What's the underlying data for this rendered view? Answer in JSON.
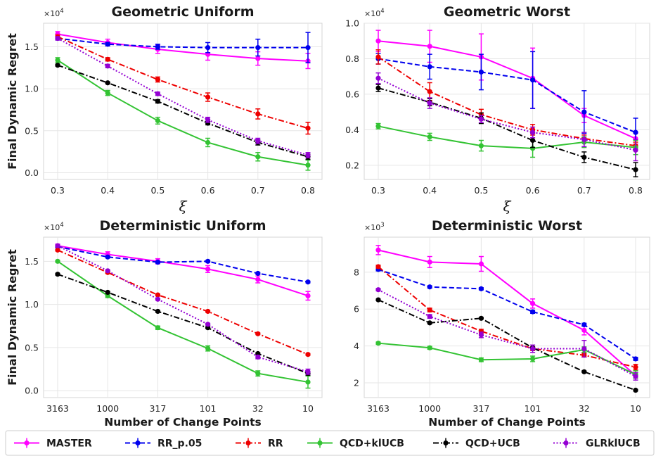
{
  "chart_data": [
    {
      "type": "line",
      "title": "Geometric Uniform",
      "xlabel": "ξ",
      "ylabel": "Final Dynamic Regret",
      "y_multiplier": "×10",
      "y_multiplier_exp": "4",
      "categories": [
        "0.3",
        "0.4",
        "0.5",
        "0.6",
        "0.7",
        "0.8"
      ],
      "ylim": [
        -0.08,
        1.78
      ],
      "yticks": [
        0.0,
        0.5,
        1.0,
        1.5
      ],
      "yticklabels": [
        "0.0",
        "0.5",
        "1.0",
        "1.5"
      ],
      "series": [
        {
          "name": "MASTER",
          "values": [
            1.65,
            1.55,
            1.47,
            1.41,
            1.36,
            1.33
          ],
          "errors": [
            0.03,
            0.04,
            0.05,
            0.07,
            0.08,
            0.09
          ]
        },
        {
          "name": "RR_p.05",
          "values": [
            1.6,
            1.53,
            1.5,
            1.49,
            1.49,
            1.49
          ],
          "errors": [
            0.02,
            0.02,
            0.03,
            0.06,
            0.1,
            0.18
          ]
        },
        {
          "name": "RR",
          "values": [
            1.62,
            1.35,
            1.11,
            0.9,
            0.7,
            0.53
          ],
          "errors": [
            0.02,
            0.02,
            0.03,
            0.05,
            0.06,
            0.07
          ]
        },
        {
          "name": "QCD+klUCB",
          "values": [
            1.34,
            0.95,
            0.62,
            0.36,
            0.19,
            0.09
          ],
          "errors": [
            0.03,
            0.03,
            0.04,
            0.05,
            0.05,
            0.06
          ]
        },
        {
          "name": "QCD+UCB",
          "values": [
            1.28,
            1.07,
            0.85,
            0.59,
            0.36,
            0.19
          ],
          "errors": [
            0.01,
            0.01,
            0.02,
            0.02,
            0.03,
            0.03
          ]
        },
        {
          "name": "GLRklUCB",
          "values": [
            1.6,
            1.27,
            0.94,
            0.63,
            0.38,
            0.21
          ],
          "errors": [
            0.02,
            0.02,
            0.02,
            0.03,
            0.03,
            0.03
          ]
        }
      ],
      "grid": true
    },
    {
      "type": "line",
      "title": "Geometric Worst",
      "xlabel": "ξ",
      "ylabel": "",
      "y_multiplier": "×10",
      "y_multiplier_exp": "4",
      "categories": [
        "0.3",
        "0.4",
        "0.5",
        "0.6",
        "0.7",
        "0.8"
      ],
      "ylim": [
        0.12,
        1.0
      ],
      "yticks": [
        0.2,
        0.4,
        0.6,
        0.8,
        1.0
      ],
      "yticklabels": [
        "0.2",
        "0.4",
        "0.6",
        "0.8",
        "1.0"
      ],
      "series": [
        {
          "name": "MASTER",
          "values": [
            0.9,
            0.87,
            0.81,
            0.69,
            0.48,
            0.35
          ],
          "errors": [
            0.06,
            0.09,
            0.13,
            0.17,
            0.04,
            0.03
          ]
        },
        {
          "name": "RR_p.05",
          "values": [
            0.8,
            0.755,
            0.725,
            0.68,
            0.5,
            0.385
          ],
          "errors": [
            0.03,
            0.07,
            0.1,
            0.16,
            0.12,
            0.08
          ]
        },
        {
          "name": "RR",
          "values": [
            0.81,
            0.615,
            0.485,
            0.4,
            0.35,
            0.31
          ],
          "errors": [
            0.04,
            0.05,
            0.03,
            0.03,
            0.02,
            0.02
          ]
        },
        {
          "name": "QCD+klUCB",
          "values": [
            0.42,
            0.36,
            0.31,
            0.295,
            0.33,
            0.3
          ],
          "errors": [
            0.015,
            0.02,
            0.03,
            0.05,
            0.03,
            0.04
          ]
        },
        {
          "name": "QCD+UCB",
          "values": [
            0.635,
            0.555,
            0.465,
            0.34,
            0.245,
            0.175
          ],
          "errors": [
            0.02,
            0.02,
            0.03,
            0.04,
            0.03,
            0.04
          ]
        },
        {
          "name": "GLRklUCB",
          "values": [
            0.69,
            0.55,
            0.46,
            0.385,
            0.345,
            0.285
          ],
          "errors": [
            0.03,
            0.03,
            0.02,
            0.03,
            0.04,
            0.06
          ]
        }
      ],
      "grid": true
    },
    {
      "type": "line",
      "title": "Deterministic Uniform",
      "xlabel": "Number of Change Points",
      "ylabel": "Final Dynamic Regret",
      "y_multiplier": "×10",
      "y_multiplier_exp": "4",
      "categories": [
        "3163",
        "1000",
        "317",
        "101",
        "32",
        "10"
      ],
      "ylim": [
        -0.08,
        1.78
      ],
      "yticks": [
        0.0,
        0.5,
        1.0,
        1.5
      ],
      "yticklabels": [
        "0.0",
        "0.5",
        "1.0",
        "1.5"
      ],
      "series": [
        {
          "name": "MASTER",
          "values": [
            1.68,
            1.58,
            1.5,
            1.41,
            1.29,
            1.1
          ],
          "errors": [
            0.02,
            0.03,
            0.03,
            0.04,
            0.04,
            0.05
          ]
        },
        {
          "name": "RR_p.05",
          "values": [
            1.67,
            1.55,
            1.49,
            1.5,
            1.36,
            1.26
          ],
          "errors": [
            0.01,
            0.01,
            0.01,
            0.01,
            0.01,
            0.01
          ]
        },
        {
          "name": "RR",
          "values": [
            1.63,
            1.37,
            1.11,
            0.92,
            0.66,
            0.42
          ],
          "errors": [
            0.01,
            0.01,
            0.01,
            0.01,
            0.01,
            0.01
          ]
        },
        {
          "name": "QCD+klUCB",
          "values": [
            1.5,
            1.1,
            0.73,
            0.49,
            0.2,
            0.1
          ],
          "errors": [
            0.01,
            0.02,
            0.02,
            0.03,
            0.03,
            0.07
          ]
        },
        {
          "name": "QCD+UCB",
          "values": [
            1.35,
            1.14,
            0.92,
            0.73,
            0.43,
            0.2
          ],
          "errors": [
            0.01,
            0.01,
            0.01,
            0.01,
            0.01,
            0.02
          ]
        },
        {
          "name": "GLRklUCB",
          "values": [
            1.68,
            1.39,
            1.06,
            0.77,
            0.39,
            0.22
          ],
          "errors": [
            0.01,
            0.01,
            0.01,
            0.01,
            0.02,
            0.03
          ]
        }
      ],
      "grid": true
    },
    {
      "type": "line",
      "title": "Deterministic Worst",
      "xlabel": "Number of Change Points",
      "ylabel": "",
      "y_multiplier": "×10",
      "y_multiplier_exp": "3",
      "categories": [
        "3163",
        "1000",
        "317",
        "101",
        "32",
        "10"
      ],
      "ylim": [
        1.2,
        9.9
      ],
      "yticks": [
        2,
        4,
        6,
        8
      ],
      "yticklabels": [
        "2",
        "4",
        "6",
        "8"
      ],
      "series": [
        {
          "name": "MASTER",
          "values": [
            9.2,
            8.55,
            8.45,
            6.3,
            4.85,
            2.4
          ],
          "errors": [
            0.25,
            0.3,
            0.4,
            0.25,
            0.25,
            0.15
          ]
        },
        {
          "name": "RR_p.05",
          "values": [
            8.15,
            7.2,
            7.1,
            5.85,
            5.15,
            3.3
          ],
          "errors": [
            0.08,
            0.06,
            0.06,
            0.08,
            0.08,
            0.08
          ]
        },
        {
          "name": "RR",
          "values": [
            8.3,
            5.95,
            4.8,
            3.85,
            3.5,
            2.85
          ],
          "errors": [
            0.08,
            0.1,
            0.1,
            0.1,
            0.1,
            0.15
          ]
        },
        {
          "name": "QCD+klUCB",
          "values": [
            4.15,
            3.9,
            3.25,
            3.3,
            3.8,
            2.45
          ],
          "errors": [
            0.06,
            0.08,
            0.1,
            0.15,
            0.15,
            0.2
          ]
        },
        {
          "name": "QCD+UCB",
          "values": [
            6.5,
            5.25,
            5.5,
            3.9,
            2.6,
            1.6
          ],
          "errors": [
            0.04,
            0.04,
            0.04,
            0.04,
            0.04,
            0.04
          ]
        },
        {
          "name": "GLRklUCB",
          "values": [
            7.05,
            5.6,
            4.6,
            3.85,
            3.85,
            2.35
          ],
          "errors": [
            0.06,
            0.1,
            0.15,
            0.2,
            0.45,
            0.2
          ]
        }
      ],
      "grid": true
    }
  ],
  "legend": {
    "placement": "bottom",
    "items": [
      {
        "label": "MASTER",
        "color": "#ff00ff",
        "dash": "solid"
      },
      {
        "label": "RR_p.05",
        "color": "#0000ee",
        "dash": "dashed"
      },
      {
        "label": "RR",
        "color": "#ee0000",
        "dash": "dashdot"
      },
      {
        "label": "QCD+klUCB",
        "color": "#33c333",
        "dash": "solid"
      },
      {
        "label": "QCD+UCB",
        "color": "#000000",
        "dash": "dashdot"
      },
      {
        "label": "GLRklUCB",
        "color": "#9400d3",
        "dash": "dotted"
      }
    ]
  }
}
